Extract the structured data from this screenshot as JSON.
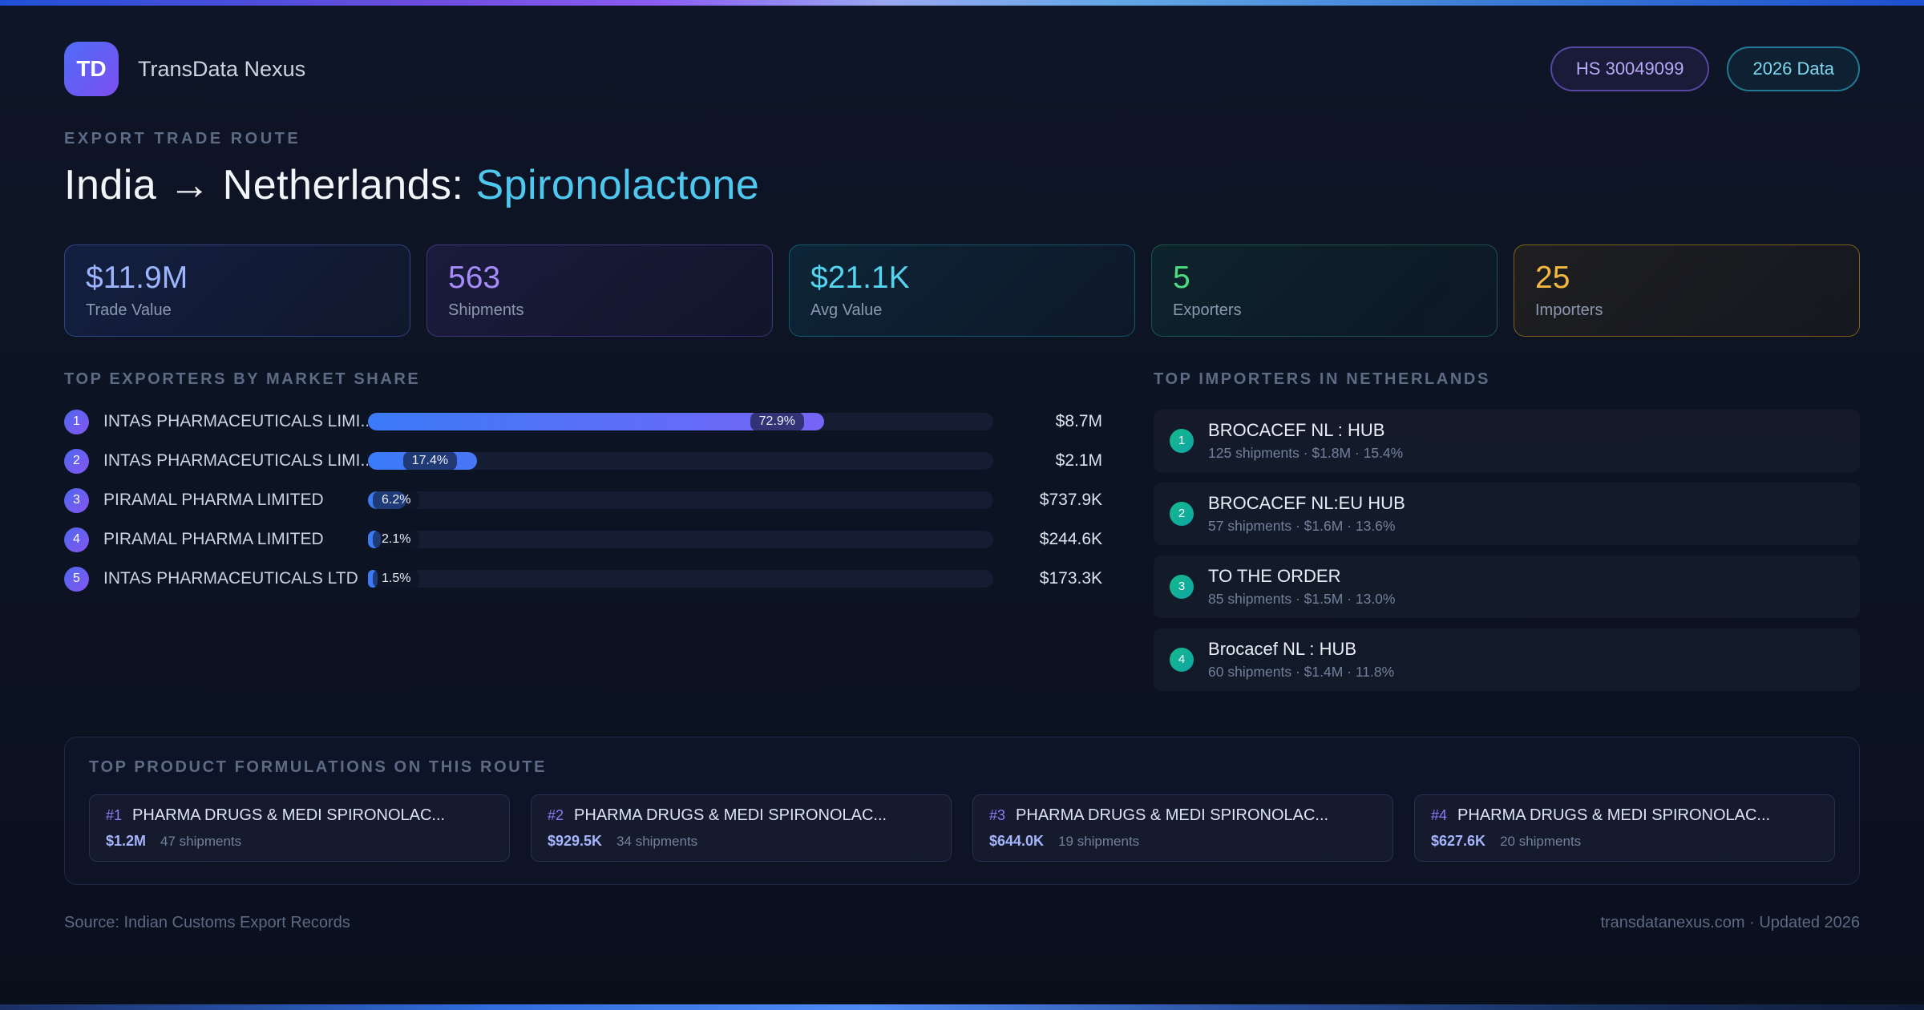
{
  "colors": {
    "title_highlight": "#4fc8f0",
    "bar_gradient_start": "#3b7bf7",
    "bar_gradient_end": "#8b5cf6",
    "importer_badge": "#16b98b"
  },
  "header": {
    "logo_text": "TD",
    "brand": "TransData Nexus",
    "badges": [
      {
        "label": "HS 30049099"
      },
      {
        "label": "2026 Data"
      }
    ]
  },
  "hero": {
    "eyebrow": "EXPORT TRADE ROUTE",
    "title_prefix": "India → Netherlands: ",
    "title_highlight": "Spironolactone"
  },
  "stats": [
    {
      "value": "$11.9M",
      "label": "Trade Value",
      "accent": "#9db4fe"
    },
    {
      "value": "563",
      "label": "Shipments",
      "accent": "#a78bfa"
    },
    {
      "value": "$21.1K",
      "label": "Avg Value",
      "accent": "#55d4f0"
    },
    {
      "value": "5",
      "label": "Exporters",
      "accent": "#4ade80"
    },
    {
      "value": "25",
      "label": "Importers",
      "accent": "#f5b73e"
    }
  ],
  "exporters": {
    "heading": "TOP EXPORTERS BY MARKET SHARE",
    "rows": [
      {
        "rank": "1",
        "name": "INTAS PHARMACEUTICALS LIMI...",
        "pct": 72.9,
        "pct_label": "72.9%",
        "value": "$8.7M"
      },
      {
        "rank": "2",
        "name": "INTAS PHARMACEUTICALS LIMI...",
        "pct": 17.4,
        "pct_label": "17.4%",
        "value": "$2.1M"
      },
      {
        "rank": "3",
        "name": "PIRAMAL PHARMA LIMITED",
        "pct": 6.2,
        "pct_label": "6.2%",
        "value": "$737.9K"
      },
      {
        "rank": "4",
        "name": "PIRAMAL PHARMA LIMITED",
        "pct": 2.1,
        "pct_label": "2.1%",
        "value": "$244.6K"
      },
      {
        "rank": "5",
        "name": "INTAS PHARMACEUTICALS LTD",
        "pct": 1.5,
        "pct_label": "1.5%",
        "value": "$173.3K"
      }
    ]
  },
  "importers": {
    "heading": "TOP IMPORTERS IN NETHERLANDS",
    "rows": [
      {
        "rank": "1",
        "name": "BROCACEF NL : HUB",
        "meta": "125 shipments · $1.8M · 15.4%"
      },
      {
        "rank": "2",
        "name": "BROCACEF NL:EU HUB",
        "meta": "57 shipments · $1.6M · 13.6%"
      },
      {
        "rank": "3",
        "name": "TO THE ORDER",
        "meta": "85 shipments · $1.5M · 13.0%"
      },
      {
        "rank": "4",
        "name": "Brocacef NL : HUB",
        "meta": "60 shipments · $1.4M · 11.8%"
      }
    ]
  },
  "formulations": {
    "heading": "TOP PRODUCT FORMULATIONS ON THIS ROUTE",
    "cards": [
      {
        "rank": "#1",
        "name": "PHARMA DRUGS & MEDI SPIRONOLAC...",
        "value": "$1.2M",
        "shipments": "47 shipments"
      },
      {
        "rank": "#2",
        "name": "PHARMA DRUGS & MEDI SPIRONOLAC...",
        "value": "$929.5K",
        "shipments": "34 shipments"
      },
      {
        "rank": "#3",
        "name": "PHARMA DRUGS & MEDI SPIRONOLAC...",
        "value": "$644.0K",
        "shipments": "19 shipments"
      },
      {
        "rank": "#4",
        "name": "PHARMA DRUGS & MEDI SPIRONOLAC...",
        "value": "$627.6K",
        "shipments": "20 shipments"
      }
    ]
  },
  "footer": {
    "source": "Source: Indian Customs Export Records",
    "site": "transdatanexus.com · Updated 2026"
  },
  "chart_data": {
    "type": "bar",
    "title": "TOP EXPORTERS BY MARKET SHARE",
    "categories": [
      "INTAS PHARMACEUTICALS LIMI...",
      "INTAS PHARMACEUTICALS LIMI...",
      "PIRAMAL PHARMA LIMITED",
      "PIRAMAL PHARMA LIMITED",
      "INTAS PHARMACEUTICALS LTD"
    ],
    "values": [
      72.9,
      17.4,
      6.2,
      2.1,
      1.5
    ],
    "value_labels": [
      "$8.7M",
      "$2.1M",
      "$737.9K",
      "$244.6K",
      "$173.3K"
    ],
    "xlabel": "",
    "ylabel": "Market share %",
    "xlim": [
      0,
      100
    ],
    "orientation": "horizontal",
    "grid": false,
    "legend": false
  }
}
